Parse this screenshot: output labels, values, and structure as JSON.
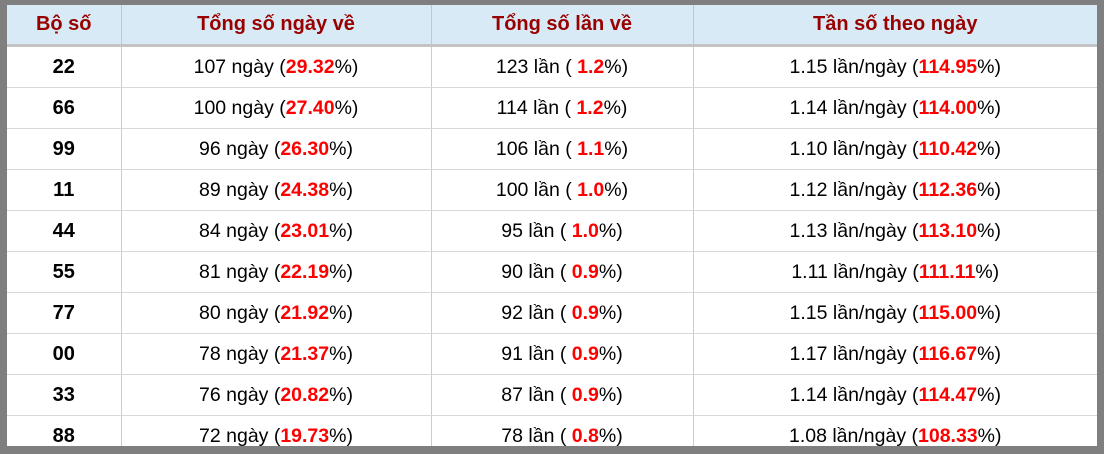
{
  "table": {
    "title": "lottery-pair-statistics",
    "headers": [
      "Bộ số",
      "Tổng số ngày về",
      "Tổng số lần về",
      "Tần số theo ngày"
    ],
    "units": {
      "days": "ngày",
      "times": "lần",
      "freq": "lần/ngày"
    },
    "colors": {
      "header_text": "#990000",
      "header_bg": "#d8eaf5",
      "highlight_red": "#ff0000",
      "frame_gray": "#7f7f7f"
    },
    "rows": [
      {
        "pair": "22",
        "days": "107",
        "days_pct": "29.32",
        "times": "123",
        "times_pct": "1.2",
        "freq": "1.15",
        "freq_pct": "114.95"
      },
      {
        "pair": "66",
        "days": "100",
        "days_pct": "27.40",
        "times": "114",
        "times_pct": "1.2",
        "freq": "1.14",
        "freq_pct": "114.00"
      },
      {
        "pair": "99",
        "days": "96",
        "days_pct": "26.30",
        "times": "106",
        "times_pct": "1.1",
        "freq": "1.10",
        "freq_pct": "110.42"
      },
      {
        "pair": "11",
        "days": "89",
        "days_pct": "24.38",
        "times": "100",
        "times_pct": "1.0",
        "freq": "1.12",
        "freq_pct": "112.36"
      },
      {
        "pair": "44",
        "days": "84",
        "days_pct": "23.01",
        "times": "95",
        "times_pct": "1.0",
        "freq": "1.13",
        "freq_pct": "113.10"
      },
      {
        "pair": "55",
        "days": "81",
        "days_pct": "22.19",
        "times": "90",
        "times_pct": "0.9",
        "freq": "1.11",
        "freq_pct": "111.11"
      },
      {
        "pair": "77",
        "days": "80",
        "days_pct": "21.92",
        "times": "92",
        "times_pct": "0.9",
        "freq": "1.15",
        "freq_pct": "115.00"
      },
      {
        "pair": "00",
        "days": "78",
        "days_pct": "21.37",
        "times": "91",
        "times_pct": "0.9",
        "freq": "1.17",
        "freq_pct": "116.67"
      },
      {
        "pair": "33",
        "days": "76",
        "days_pct": "20.82",
        "times": "87",
        "times_pct": "0.9",
        "freq": "1.14",
        "freq_pct": "114.47"
      },
      {
        "pair": "88",
        "days": "72",
        "days_pct": "19.73",
        "times": "78",
        "times_pct": "0.8",
        "freq": "1.08",
        "freq_pct": "108.33"
      }
    ]
  }
}
